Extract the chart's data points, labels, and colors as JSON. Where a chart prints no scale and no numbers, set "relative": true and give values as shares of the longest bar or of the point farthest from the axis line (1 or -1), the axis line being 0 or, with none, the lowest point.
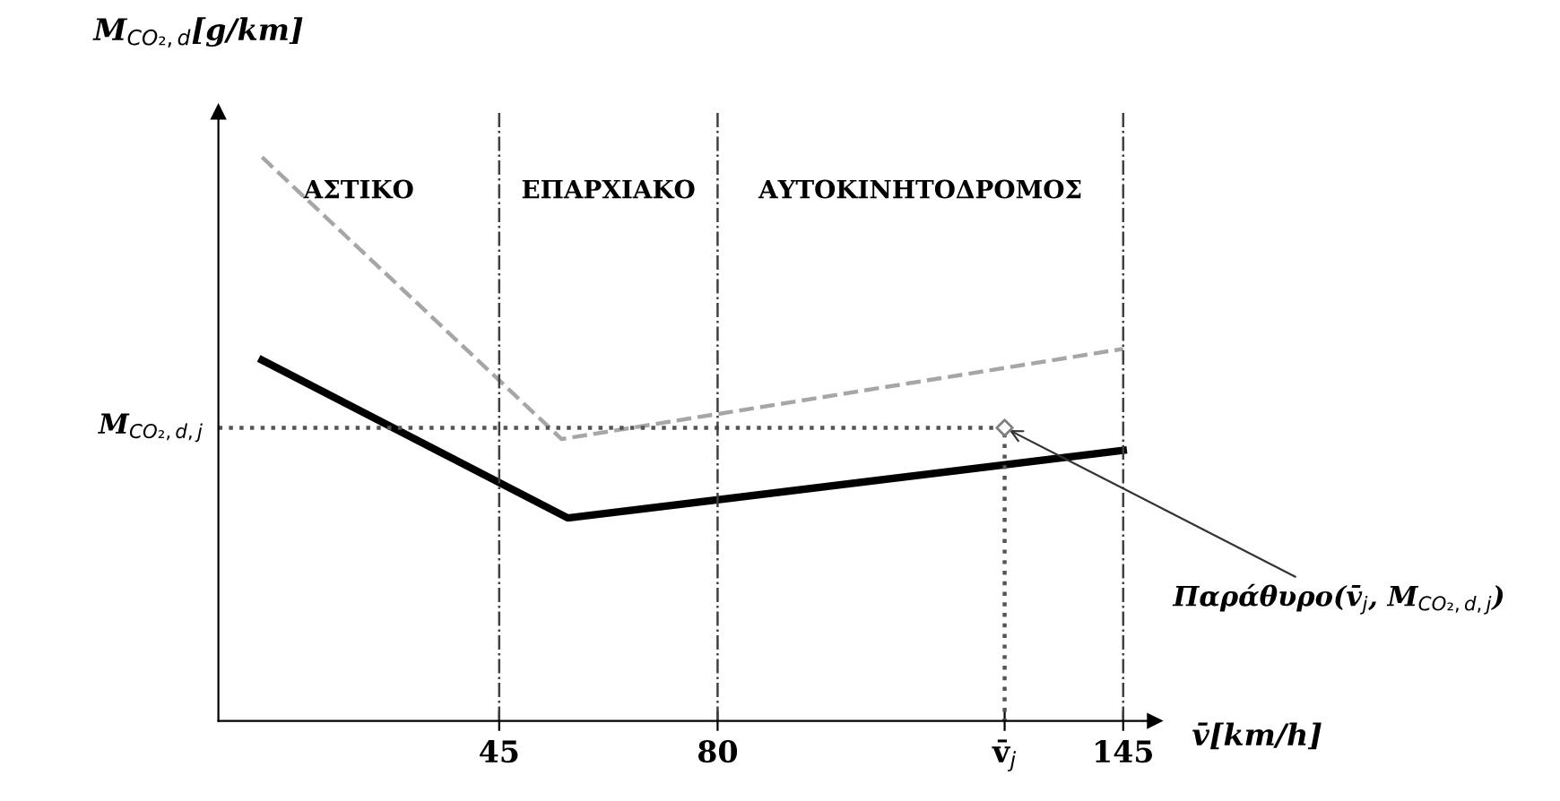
{
  "chart_data": {
    "type": "line",
    "relative": true,
    "xlabel": "v̄[km/h]",
    "ylabel": "M$_{CO₂,d}$[g/km]",
    "xlim": [
      0,
      150
    ],
    "xticks": [
      45,
      80,
      {
        "value": 126,
        "label": "v̄$_{j}$"
      },
      145
    ],
    "series": [
      {
        "color": "#000000",
        "line_style": "solid",
        "x": [
          7,
          56,
          145
        ],
        "values": [
          0.64,
          0.36,
          0.48
        ]
      },
      {
        "color": "#a6a6a6",
        "line_style": "dashed",
        "x": [
          7,
          55,
          145
        ],
        "values": [
          1.0,
          0.5,
          0.66
        ]
      },
      {
        "color": "#555555",
        "line_style": "dotted",
        "x": [
          0,
          126,
          126
        ],
        "values": [
          0.52,
          0.52,
          0
        ]
      },
      {
        "type": "scatter",
        "color": "#808080",
        "marker": "diamond",
        "x": [
          126
        ],
        "values": [
          0.52
        ]
      }
    ],
    "ref_lines": [
      {
        "axis": "x",
        "value": 45,
        "line_style": "dashdot",
        "color": "#404040"
      },
      {
        "axis": "x",
        "value": 80,
        "line_style": "dashdot",
        "color": "#404040"
      },
      {
        "axis": "x",
        "value": 145,
        "line_style": "dashdot",
        "color": "#404040"
      }
    ],
    "annotations": [
      "ΑΣΤΙΚΟ",
      "ΕΠΑΡΧΙΑΚΟ",
      "ΑΥΤΟΚΙΝΗΤΟΔΡΟΜΟΣ",
      {
        "text": "M$_{CO₂,d,j}$",
        "x": 0,
        "y": 0.52
      },
      {
        "text": "Παράθυρο(v̄$_{j}$, M$_{CO₂,d,j}$)",
        "x": 126,
        "y": 0.52
      }
    ],
    "grid": false
  }
}
